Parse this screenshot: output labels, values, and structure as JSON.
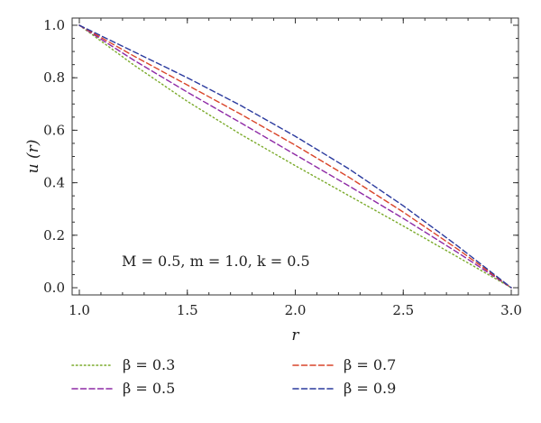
{
  "chart_data": {
    "type": "line",
    "title": "",
    "xlabel": "r",
    "ylabel": "u (r)",
    "xlim": [
      1.0,
      3.0
    ],
    "ylim": [
      0.0,
      1.0
    ],
    "xticks": [
      "1.0",
      "1.5",
      "2.0",
      "2.5",
      "3.0"
    ],
    "yticks": [
      "0.0",
      "0.2",
      "0.4",
      "0.6",
      "0.8",
      "1.0"
    ],
    "annotation": "M = 0.5, m = 1.0, k = 0.5",
    "legend_position": "bottom",
    "x": [
      1.0,
      1.25,
      1.5,
      1.75,
      2.0,
      2.25,
      2.5,
      2.75,
      3.0
    ],
    "series": [
      {
        "name": "β = 0.3",
        "color": "#7aaa2a",
        "dash": "dotted",
        "values": [
          1.0,
          0.85,
          0.71,
          0.583,
          0.465,
          0.35,
          0.235,
          0.118,
          0.0
        ]
      },
      {
        "name": "β = 0.5",
        "color": "#8e2aa6",
        "dash": "dashed",
        "values": [
          1.0,
          0.868,
          0.745,
          0.627,
          0.507,
          0.387,
          0.264,
          0.135,
          0.0
        ]
      },
      {
        "name": "β = 0.7",
        "color": "#d9452a",
        "dash": "dashed",
        "values": [
          1.0,
          0.884,
          0.772,
          0.66,
          0.543,
          0.42,
          0.288,
          0.148,
          0.0
        ]
      },
      {
        "name": "β = 0.9",
        "color": "#2a3a9e",
        "dash": "dashed",
        "values": [
          1.0,
          0.9,
          0.8,
          0.693,
          0.577,
          0.452,
          0.312,
          0.16,
          0.0
        ]
      }
    ]
  }
}
